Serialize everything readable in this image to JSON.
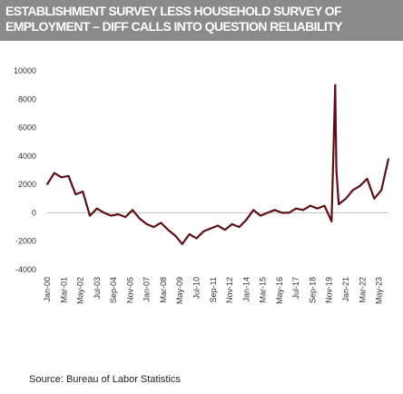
{
  "header": {
    "title_line1": "ESTABLISHMENT SURVEY LESS HOUSEHOLD SURVEY OF",
    "title_line2": "EMPLOYMENT – DIFF CALLS INTO QUESTION RELIABILITY"
  },
  "source_note": "Source:  Bureau of Labor Statistics",
  "colors": {
    "title_bg": "#8a8a8a",
    "line": "#5c0f14",
    "axis": "#bfbfbf",
    "text": "#333333"
  },
  "chart_data": {
    "type": "line",
    "title": "ESTABLISHMENT SURVEY LESS HOUSEHOLD SURVEY OF EMPLOYMENT – DIFF CALLS INTO QUESTION RELIABILITY",
    "xlabel": "",
    "ylabel": "",
    "ylim": [
      -4000,
      10000
    ],
    "yticks": [
      -4000,
      -2000,
      0,
      2000,
      4000,
      6000,
      8000,
      10000
    ],
    "xticks": [
      "Jan-00",
      "Mar-01",
      "May-02",
      "Jul-03",
      "Sep-04",
      "Nov-05",
      "Jan-07",
      "Mar-08",
      "May-09",
      "Jul-10",
      "Sep-11",
      "Nov-12",
      "Jan-14",
      "Mar-15",
      "May-16",
      "Jul-17",
      "Sep-18",
      "Nov-19",
      "Jan-21",
      "Mar-22",
      "May-23"
    ],
    "grid": false,
    "legend": "none",
    "series": [
      {
        "x": [
          "Jan-00",
          "Jul-00",
          "Jan-01",
          "Jul-01",
          "Jan-02",
          "Jul-02",
          "Jan-03",
          "Jul-03",
          "Jan-04",
          "Jul-04",
          "Jan-05",
          "Jul-05",
          "Jan-06",
          "Jul-06",
          "Jan-07",
          "Jul-07",
          "Jan-08",
          "Jul-08",
          "Jan-09",
          "Jul-09",
          "Jan-10",
          "Jul-10",
          "Jan-11",
          "Jul-11",
          "Jan-12",
          "Jul-12",
          "Jan-13",
          "Jul-13",
          "Jan-14",
          "Jul-14",
          "Jan-15",
          "Jul-15",
          "Jan-16",
          "Jul-16",
          "Jan-17",
          "Jul-17",
          "Jan-18",
          "Jul-18",
          "Jan-19",
          "Jul-19",
          "Jan-20",
          "Apr-20",
          "May-20",
          "Jul-20",
          "Jan-21",
          "Jul-21",
          "Jan-22",
          "Jul-22",
          "Jan-23",
          "Jul-23",
          "Jan-24"
        ],
        "values": [
          2000,
          2800,
          2500,
          2600,
          1300,
          1500,
          -200,
          300,
          0,
          -200,
          -100,
          -300,
          200,
          -400,
          -800,
          -1000,
          -700,
          -1200,
          -1600,
          -2200,
          -1500,
          -1800,
          -1300,
          -1100,
          -900,
          -1200,
          -800,
          -1000,
          -500,
          200,
          -200,
          0,
          200,
          0,
          0,
          300,
          200,
          500,
          300,
          500,
          -600,
          9000,
          3000,
          600,
          1000,
          1600,
          1900,
          2400,
          1000,
          1600,
          3800
        ]
      }
    ]
  }
}
